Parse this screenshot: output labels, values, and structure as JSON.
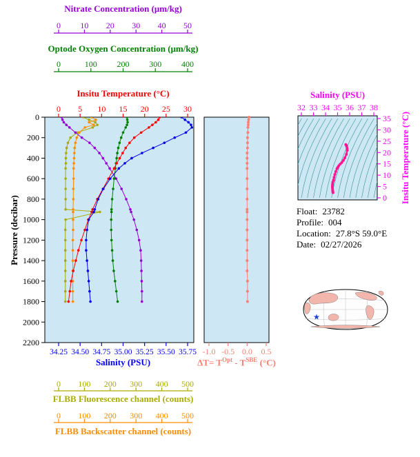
{
  "labels": {
    "nitrate_title": "Nitrate Concentration (μm/kg)",
    "oxygen_title": "Optode Oxygen Concentration (μm/kg)",
    "temperature_title": "Insitu Temperature (°C)",
    "pressure_title": "Pressure (decibar)",
    "salinity_title": "Salinity (PSU)",
    "fluorescence_title": "FLBB Fluorescence channel (counts)",
    "backscatter_title": "FLBB Backscatter channel (counts)",
    "ts_salinity_title": "Salinity (PSU)",
    "ts_temperature_title": "Insitu Temperature (°C)",
    "delta_title": {
      "p1": "ΔT= T",
      "sup1": "Opt",
      "p2": " - T",
      "sup2": "SBE",
      "p3": " (°C)"
    }
  },
  "info": {
    "float_label": "Float:",
    "float_value": "23782",
    "profile_label": "Profile:",
    "profile_value": "004",
    "location_label": "Location:",
    "location_value": "27.8°S 59.0°E",
    "date_label": "Date:",
    "date_value": "02/27/2026"
  },
  "colors": {
    "nitrate": "#9400D3",
    "oxygen": "#008000",
    "temperature": "#FF0000",
    "salinity": "#0000EE",
    "fluorescence": "#AAAA00",
    "backscatter": "#FF8C00",
    "delta": "#FA8072",
    "magenta": "#FF00FF",
    "ts_curve": "#FF1493",
    "contour": "#2E9494",
    "plot_bg": "#CEE7F4",
    "map_land": "#F2B6AC",
    "star": "#2244CC",
    "text": "#000000"
  },
  "chart_data": {
    "profile_plot": {
      "type": "line",
      "ylabel": "Pressure (decibar)",
      "ylim": [
        0,
        2200
      ],
      "y_ticks": [
        0,
        200,
        400,
        600,
        800,
        1000,
        1200,
        1400,
        1600,
        1800,
        2000,
        2200
      ],
      "grid": false,
      "background": "#CEE7F4",
      "pressure": [
        0,
        25,
        50,
        75,
        100,
        150,
        200,
        250,
        300,
        350,
        400,
        450,
        500,
        600,
        700,
        800,
        900,
        925,
        1000,
        1100,
        1200,
        1300,
        1400,
        1500,
        1600,
        1700,
        1800
      ],
      "series": [
        {
          "id": "temperature",
          "name": "Insitu Temperature",
          "units": "°C",
          "color": "#FF0000",
          "range": [
            0,
            30
          ],
          "ticks": [
            0,
            5,
            10,
            15,
            20,
            25,
            30
          ],
          "values": [
            23.5,
            23.2,
            22.6,
            21.8,
            21.0,
            19.2,
            17.6,
            16.5,
            15.6,
            14.9,
            14.2,
            13.5,
            12.9,
            11.6,
            10.3,
            9.0,
            7.9,
            7.7,
            6.9,
            6.1,
            5.3,
            4.6,
            4.0,
            3.4,
            2.9,
            2.6,
            2.3
          ]
        },
        {
          "id": "salinity",
          "name": "Salinity",
          "units": "PSU",
          "color": "#0000EE",
          "range": [
            34.25,
            35.75
          ],
          "ticks": [
            "34.25",
            "34.50",
            "34.75",
            "35.00",
            "35.25",
            "35.50",
            "35.75"
          ],
          "values": [
            35.68,
            35.72,
            35.76,
            35.79,
            35.8,
            35.73,
            35.6,
            35.48,
            35.35,
            35.22,
            35.1,
            35.02,
            34.95,
            34.85,
            34.77,
            34.71,
            34.67,
            34.66,
            34.6,
            34.58,
            34.57,
            34.57,
            34.58,
            34.59,
            34.6,
            34.61,
            34.62
          ]
        },
        {
          "id": "oxygen",
          "name": "Optode Oxygen Concentration",
          "units": "μm/kg",
          "color": "#008000",
          "range": [
            0,
            400
          ],
          "ticks": [
            0,
            100,
            200,
            300,
            400
          ],
          "values": [
            212,
            213,
            214,
            212,
            208,
            200,
            194,
            189,
            185,
            182,
            180,
            178,
            176,
            172,
            169,
            166,
            164,
            164,
            163,
            163,
            164,
            166,
            168,
            171,
            175,
            179,
            183
          ]
        },
        {
          "id": "nitrate",
          "name": "Nitrate Concentration",
          "units": "μm/kg",
          "color": "#9400D3",
          "range": [
            0,
            50
          ],
          "ticks": [
            0,
            10,
            20,
            30,
            40,
            50
          ],
          "values": [
            1.2,
            1.5,
            2.0,
            3.0,
            4.2,
            6.5,
            9.0,
            12.0,
            14.0,
            15.8,
            17.2,
            18.5,
            19.8,
            22.3,
            24.4,
            26.2,
            27.8,
            28.1,
            29.2,
            30.3,
            31.2,
            31.8,
            32.0,
            32.1,
            32.2,
            32.3,
            32.3
          ]
        },
        {
          "id": "fluorescence",
          "name": "FLBB Fluorescence channel",
          "units": "counts",
          "color": "#AAAA00",
          "range": [
            0,
            500
          ],
          "ticks": [
            0,
            100,
            200,
            300,
            400,
            500
          ],
          "values": [
            95,
            118,
            142,
            150,
            132,
            72,
            46,
            36,
            31,
            29,
            28,
            28,
            27,
            27,
            27,
            27,
            27,
            160,
            27,
            26,
            26,
            26,
            26,
            26,
            26,
            26,
            26
          ]
        },
        {
          "id": "backscatter",
          "name": "FLBB Backscatter channel",
          "units": "counts",
          "color": "#FF8C00",
          "range": [
            0,
            500
          ],
          "ticks": [
            0,
            100,
            200,
            300,
            400,
            500
          ],
          "values": [
            128,
            144,
            118,
            136,
            102,
            80,
            70,
            65,
            62,
            61,
            60,
            59,
            58,
            58,
            57,
            57,
            56,
            56,
            56,
            56,
            55,
            55,
            55,
            55,
            55,
            55,
            55
          ]
        }
      ]
    },
    "delta_plot": {
      "type": "scatter",
      "xlabel": "ΔT= T^Opt - T^SBE (°C)",
      "xlim": [
        -1.0,
        0.5
      ],
      "x_ticks": [
        "-1.0",
        "-0.5",
        "0.0",
        "0.5"
      ],
      "uses_profile_pressures": true,
      "values": [
        0.05,
        0.04,
        0.03,
        0.03,
        0.02,
        0.02,
        0.01,
        0.01,
        0.01,
        0.0,
        0.0,
        0.0,
        0.0,
        0.0,
        0.0,
        0.0,
        0.0,
        0.0,
        0.0,
        0.0,
        0.0,
        0.0,
        0.0,
        0.0,
        0.01,
        0.01,
        0.01
      ]
    },
    "ts_plot": {
      "type": "line",
      "xlabel": "Salinity (PSU)",
      "ylabel": "Insitu Temperature (°C)",
      "xlim": [
        32,
        38
      ],
      "ylim": [
        0,
        35
      ],
      "x_ticks": [
        32,
        33,
        34,
        35,
        36,
        37,
        38
      ],
      "y_ticks": [
        0,
        5,
        10,
        15,
        20,
        25,
        30,
        35
      ],
      "note": "curve = profile salinity vs profile temperature, with density contour background"
    }
  }
}
